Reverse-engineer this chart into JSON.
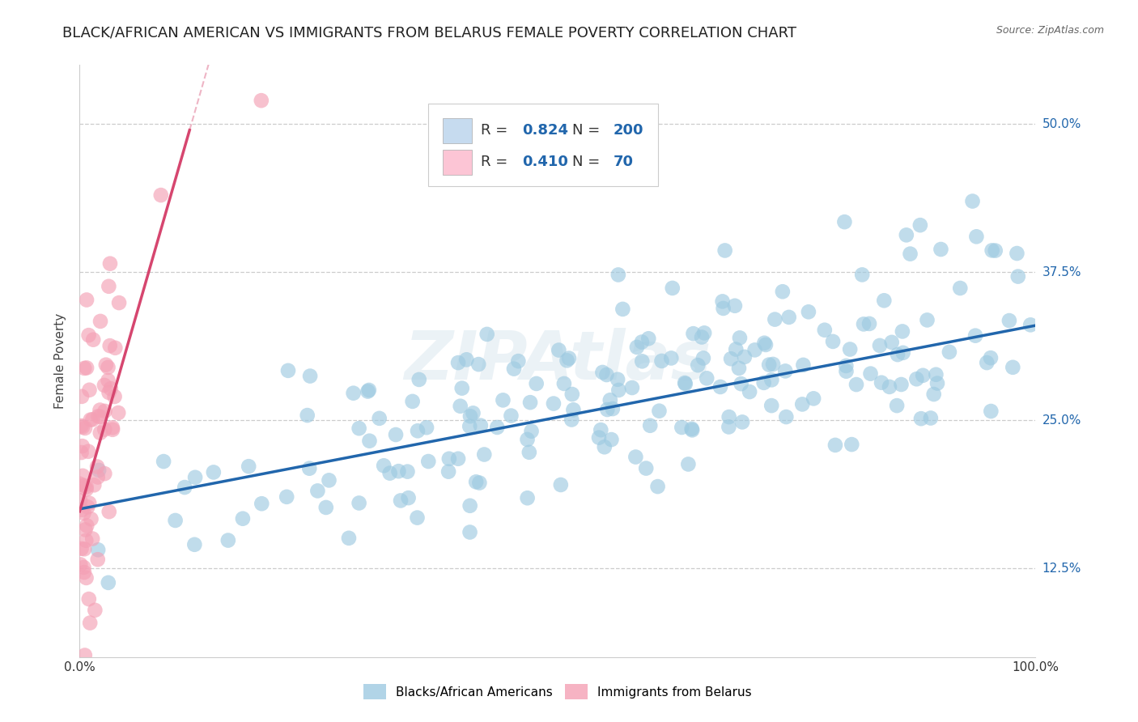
{
  "title": "BLACK/AFRICAN AMERICAN VS IMMIGRANTS FROM BELARUS FEMALE POVERTY CORRELATION CHART",
  "source": "Source: ZipAtlas.com",
  "ylabel": "Female Poverty",
  "blue_R": 0.824,
  "blue_N": 200,
  "pink_R": 0.41,
  "pink_N": 70,
  "blue_color": "#9ecae1",
  "blue_line_color": "#2166ac",
  "pink_color": "#f4a0b5",
  "pink_line_color": "#d6466f",
  "pink_dash_color": "#e8b0c0",
  "legend_box_blue": "#c6dbef",
  "legend_box_pink": "#fcc5d5",
  "xlim": [
    0.0,
    1.0
  ],
  "ylim": [
    0.05,
    0.55
  ],
  "yticks": [
    0.125,
    0.25,
    0.375,
    0.5
  ],
  "ytick_labels": [
    "12.5%",
    "25.0%",
    "37.5%",
    "50.0%"
  ],
  "xticks": [
    0.0,
    0.25,
    0.5,
    0.75,
    1.0
  ],
  "xtick_labels": [
    "0.0%",
    "",
    "",
    "",
    "100.0%"
  ],
  "watermark": "ZIPAtlas",
  "blue_slope": 0.155,
  "blue_intercept": 0.175,
  "pink_slope": 2.8,
  "pink_intercept": 0.173,
  "pink_line_end_x": 0.115,
  "title_fontsize": 13,
  "axis_label_fontsize": 11,
  "tick_fontsize": 11,
  "legend_fontsize": 13
}
